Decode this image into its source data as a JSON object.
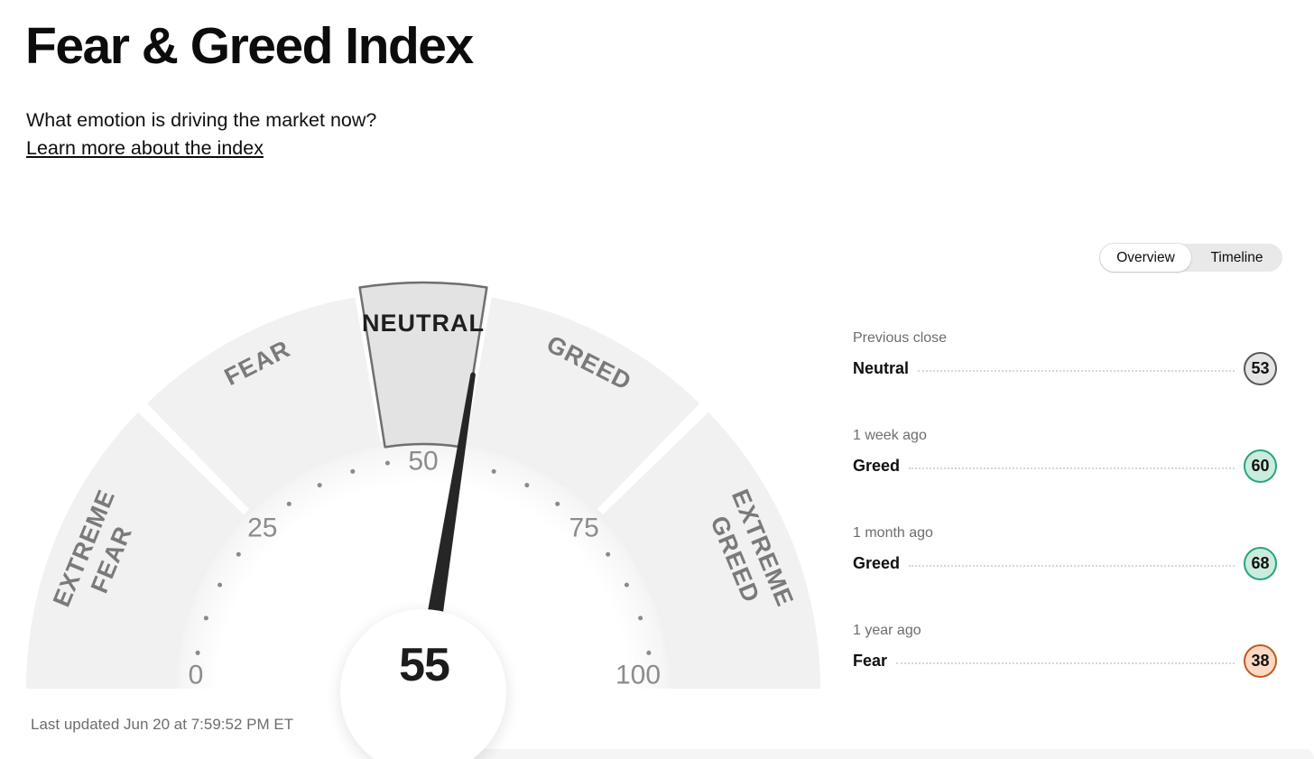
{
  "page": {
    "title": "Fear & Greed Index",
    "subtitle": "What emotion is driving the market now?",
    "learn_more": "Learn more about the index",
    "last_updated": "Last updated Jun 20 at 7:59:52 PM ET"
  },
  "tabs": {
    "overview": "Overview",
    "timeline": "Timeline",
    "active": "Overview"
  },
  "colors": {
    "segment_fill": "#f1f1f1",
    "segment_label": "#7a7a7a",
    "highlight_fill": "#e3e3e3",
    "highlight_stroke": "#6f6f6f",
    "highlight_label": "#1f1f1f",
    "tick_label": "#8c8c8c",
    "dot": "#8a8a8a",
    "needle": "#262626",
    "value_text": "#1c1c1c",
    "neutral_badge_fill": "#e4e4e4",
    "neutral_badge_border": "#595959",
    "greed_badge_fill": "#c9ecdc",
    "greed_badge_border": "#2aa380",
    "fear_badge_fill": "#fbd9c5",
    "fear_badge_border": "#bf5b21"
  },
  "chart_data": {
    "type": "gauge",
    "title": "Fear & Greed Index",
    "min": 0,
    "max": 100,
    "value": 55,
    "axis_ticks": [
      0,
      25,
      50,
      75,
      100
    ],
    "dot_step": 5,
    "segments": [
      {
        "label": "EXTREME FEAR",
        "lines": [
          "EXTREME",
          "FEAR"
        ],
        "from": 0,
        "to": 25,
        "highlighted": false
      },
      {
        "label": "FEAR",
        "lines": [
          "FEAR"
        ],
        "from": 25,
        "to": 45,
        "highlighted": false
      },
      {
        "label": "NEUTRAL",
        "lines": [
          "NEUTRAL"
        ],
        "from": 45,
        "to": 55,
        "highlighted": true
      },
      {
        "label": "GREED",
        "lines": [
          "GREED"
        ],
        "from": 55,
        "to": 75,
        "highlighted": false
      },
      {
        "label": "EXTREME GREED",
        "lines": [
          "EXTREME",
          "GREED"
        ],
        "from": 75,
        "to": 100,
        "highlighted": false
      }
    ],
    "history": [
      {
        "label": "Previous close",
        "sentiment": "Neutral",
        "value": 53,
        "fill": "#e4e4e4",
        "border": "#595959"
      },
      {
        "label": "1 week ago",
        "sentiment": "Greed",
        "value": 60,
        "fill": "#c9ecdc",
        "border": "#2aa380"
      },
      {
        "label": "1 month ago",
        "sentiment": "Greed",
        "value": 68,
        "fill": "#c9ecdc",
        "border": "#2aa380"
      },
      {
        "label": "1 year ago",
        "sentiment": "Fear",
        "value": 38,
        "fill": "#fbd9c5",
        "border": "#bf5b21"
      }
    ]
  }
}
